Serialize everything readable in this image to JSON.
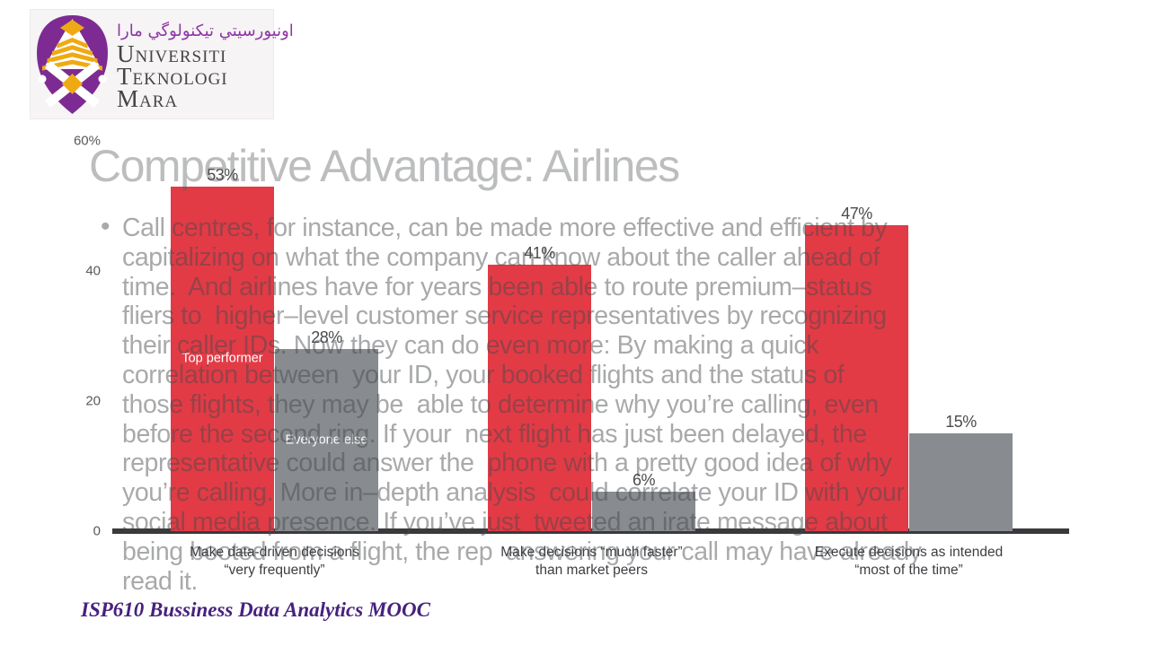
{
  "logo": {
    "arabic_title": "اونيورسيتي تيكنولوگي مارا",
    "name_lines": [
      "Universiti",
      "Teknologi",
      "Mara"
    ],
    "purple": "#7d2b92",
    "gold": "#efaa13"
  },
  "overlay": {
    "title": "Competitive Advantage: Airlines",
    "bullet_glyph": "•",
    "lines": [
      "Call centres, for instance, can be made more effective and efficient by",
      "capitalizing on what the company can know about the caller ahead of",
      "time.  And airlines have for years been able to route premium–status",
      "fliers to  higher–level customer service representatives by recognizing",
      "their caller IDs. Now they can do even more: By making a quick",
      "correlation between  your ID, your booked flights and the status of",
      "those flights, they may be  able to determine why you’re calling, even",
      "before the second ring. If your  next flight has just been delayed, the",
      "representative could answer the  phone with a pretty good idea of why",
      "you’re calling. More in–depth analysis  could correlate your ID with your",
      "social media presence. If you’ve just  tweeted an irate message about",
      "being booted from a flight, the rep  answering your call may have already",
      "read it."
    ]
  },
  "chart_data": {
    "type": "bar",
    "title": "",
    "xlabel": "",
    "ylabel": "",
    "ylim": [
      0,
      60
    ],
    "grid": false,
    "legend_position": "labels inside first group of bars",
    "categories": [
      [
        "Make data-driven decisions",
        "“very frequently”"
      ],
      [
        "Make decisions “much faster”",
        "than market peers"
      ],
      [
        "Execute decisions as intended",
        "“most of the time”"
      ]
    ],
    "series": [
      {
        "name": "Top performer",
        "color": "#e23b46",
        "values": [
          53,
          41,
          47
        ]
      },
      {
        "name": "Everyone else",
        "color": "#888b8f",
        "values": [
          28,
          6,
          15
        ]
      }
    ],
    "y_ticks": [
      {
        "label": "60%",
        "value": 60
      },
      {
        "label": "40",
        "value": 40
      },
      {
        "label": "20",
        "value": 20
      },
      {
        "label": "0",
        "value": 0
      }
    ],
    "axis_color": "#3a3a3c"
  },
  "caption": {
    "text": "ISP610 Bussiness Data Analytics MOOC",
    "color": "#47217e"
  }
}
